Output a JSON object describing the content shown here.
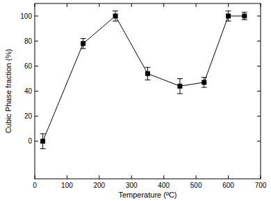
{
  "chart_data": {
    "type": "line",
    "x_label": "Temperature (ºC)",
    "y_label": "Cubic Phase fraction (%)",
    "x": [
      25,
      150,
      250,
      350,
      450,
      525,
      600,
      650
    ],
    "values": [
      0,
      78,
      100,
      54,
      44,
      47,
      100,
      100
    ],
    "errors": [
      6,
      4,
      4,
      5,
      6,
      4,
      4,
      3
    ],
    "xlim": [
      0,
      700
    ],
    "ylim": [
      -30,
      110
    ],
    "xticks": [
      0,
      100,
      200,
      300,
      400,
      500,
      600,
      700
    ],
    "yticks": [
      0,
      20,
      40,
      60,
      80,
      100
    ],
    "color": "#000000",
    "marker": "square",
    "line_style": "solid",
    "grid": false
  }
}
